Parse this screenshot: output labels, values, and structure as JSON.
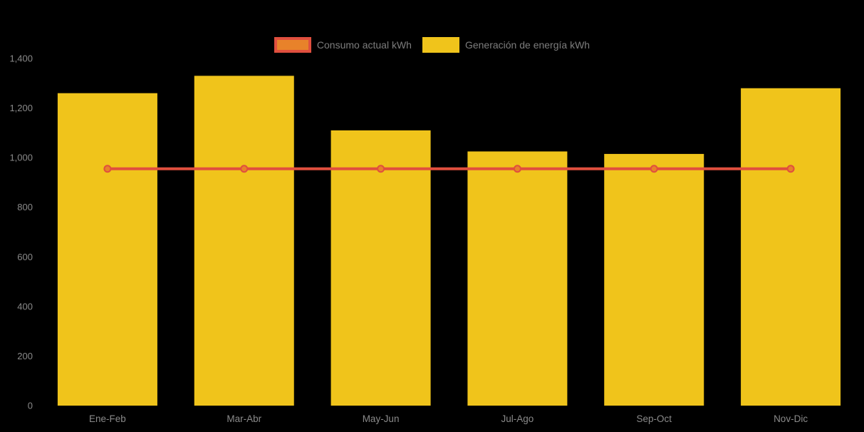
{
  "legend": {
    "items": [
      {
        "label": "Consumo actual kWh",
        "series": "line"
      },
      {
        "label": "Generación de energía kWh",
        "series": "bar"
      }
    ]
  },
  "colors": {
    "background": "#000000",
    "bar": "#F0C41B",
    "line": "#E04F3E",
    "marker_fill": "#E8822A",
    "marker_stroke": "#E04F3E",
    "axis_text": "#8A8A8A",
    "legend_text": "#7D7D7D"
  },
  "chart_data": {
    "type": "bar",
    "title": "",
    "xlabel": "",
    "ylabel": "",
    "categories": [
      "Ene-Feb",
      "Mar-Abr",
      "May-Jun",
      "Jul-Ago",
      "Sep-Oct",
      "Nov-Dic"
    ],
    "series": [
      {
        "name": "Generación de energía kWh",
        "type": "bar",
        "color": "#F0C41B",
        "values": [
          1260,
          1330,
          1110,
          1025,
          1015,
          1280
        ]
      },
      {
        "name": "Consumo actual kWh",
        "type": "line",
        "color": "#E04F3E",
        "marker_fill": "#E8822A",
        "values": [
          955,
          955,
          955,
          955,
          955,
          955
        ]
      }
    ],
    "ylim": [
      0,
      1400
    ],
    "yticks": [
      0,
      200,
      400,
      600,
      800,
      1000,
      1200,
      1400
    ],
    "ytick_labels": [
      "0",
      "200",
      "400",
      "600",
      "800",
      "1,000",
      "1,200",
      "1,400"
    ],
    "grid": false,
    "legend_position": "top-center"
  }
}
